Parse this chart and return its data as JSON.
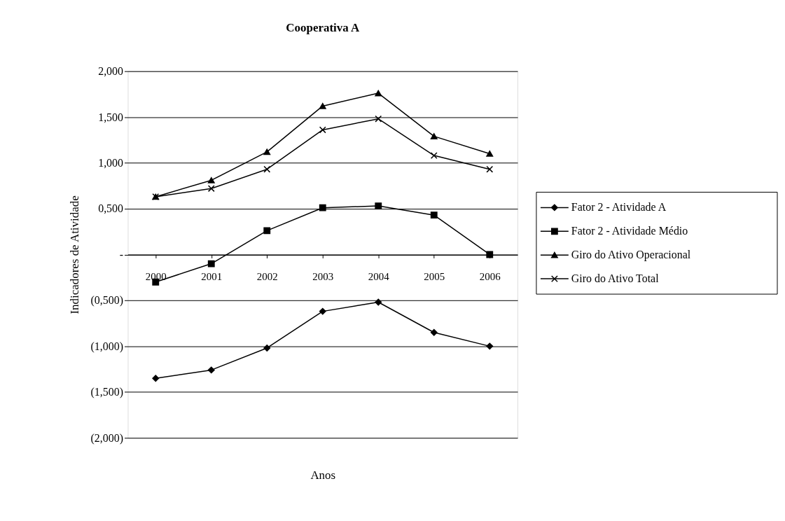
{
  "chart_data": {
    "type": "line",
    "title": "Cooperativa A",
    "xlabel": "Anos",
    "ylabel": "Indicadores de Atividade",
    "categories": [
      "2000",
      "2001",
      "2002",
      "2003",
      "2004",
      "2005",
      "2006"
    ],
    "series": [
      {
        "name": "Fator 2 - Atividade A",
        "color": "#000000",
        "marker": "diamond",
        "values": [
          -1.35,
          -1.26,
          -1.02,
          -0.62,
          -0.52,
          -0.85,
          -1.0
        ]
      },
      {
        "name": "Fator 2 - Atividade Médio",
        "color": "#000000",
        "marker": "square",
        "values": [
          -0.3,
          -0.1,
          0.26,
          0.51,
          0.53,
          0.43,
          0.0
        ]
      },
      {
        "name": "Giro do Ativo Operacional",
        "color": "#000000",
        "marker": "triangle",
        "values": [
          0.63,
          0.81,
          1.12,
          1.62,
          1.76,
          1.29,
          1.1
        ]
      },
      {
        "name": "Giro do Ativo Total",
        "color": "#000000",
        "marker": "cross",
        "values": [
          0.63,
          0.72,
          0.93,
          1.36,
          1.48,
          1.08,
          0.93
        ]
      }
    ],
    "ylim": [
      -2,
      2
    ],
    "yticks": [
      {
        "value": -2,
        "label": "(2,000)"
      },
      {
        "value": -1.5,
        "label": "(1,500)"
      },
      {
        "value": -1,
        "label": "(1,000)"
      },
      {
        "value": -0.5,
        "label": "(0,500)"
      },
      {
        "value": 0,
        "label": "-"
      },
      {
        "value": 0.5,
        "label": "0,500"
      },
      {
        "value": 1,
        "label": "1,000"
      },
      {
        "value": 1.5,
        "label": "1,500"
      },
      {
        "value": 2,
        "label": "2,000"
      }
    ],
    "grid": "y",
    "legend": "right"
  }
}
